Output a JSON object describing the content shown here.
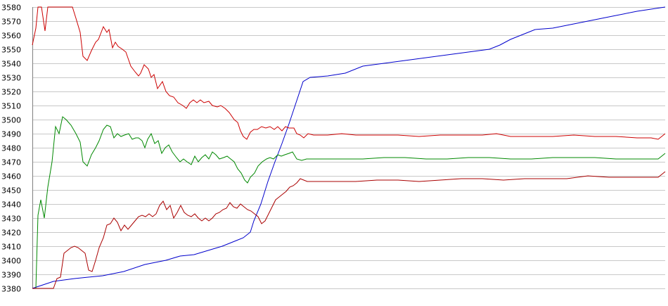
{
  "chart_data": {
    "type": "line",
    "title": "",
    "xlabel": "",
    "ylabel": "",
    "ylim": [
      3380,
      3580
    ],
    "yticks": [
      3380,
      3390,
      3400,
      3410,
      3420,
      3430,
      3440,
      3450,
      3460,
      3470,
      3480,
      3490,
      3500,
      3510,
      3520,
      3530,
      3540,
      3550,
      3560,
      3570,
      3580
    ],
    "xlim": [
      0,
      900
    ],
    "grid": "horizontal",
    "legend": "none",
    "series": [
      {
        "color": "#0000cc",
        "points": [
          [
            0,
            3380
          ],
          [
            30,
            3385
          ],
          [
            60,
            3387
          ],
          [
            100,
            3389
          ],
          [
            130,
            3392
          ],
          [
            160,
            3397
          ],
          [
            190,
            3400
          ],
          [
            210,
            3403
          ],
          [
            230,
            3404
          ],
          [
            250,
            3407
          ],
          [
            270,
            3410
          ],
          [
            290,
            3414
          ],
          [
            300,
            3416
          ],
          [
            310,
            3420
          ],
          [
            315,
            3428
          ],
          [
            325,
            3440
          ],
          [
            335,
            3456
          ],
          [
            345,
            3470
          ],
          [
            355,
            3483
          ],
          [
            365,
            3497
          ],
          [
            375,
            3512
          ],
          [
            385,
            3527
          ],
          [
            395,
            3530
          ],
          [
            420,
            3531
          ],
          [
            445,
            3533
          ],
          [
            470,
            3538
          ],
          [
            500,
            3540
          ],
          [
            530,
            3542
          ],
          [
            560,
            3544
          ],
          [
            590,
            3546
          ],
          [
            620,
            3548
          ],
          [
            650,
            3550
          ],
          [
            665,
            3553
          ],
          [
            680,
            3557
          ],
          [
            700,
            3561
          ],
          [
            715,
            3564
          ],
          [
            740,
            3565
          ],
          [
            770,
            3568
          ],
          [
            800,
            3571
          ],
          [
            830,
            3574
          ],
          [
            860,
            3577
          ],
          [
            900,
            3580
          ]
        ]
      },
      {
        "color": "#cc0000",
        "points": [
          [
            0,
            3553
          ],
          [
            5,
            3565
          ],
          [
            8,
            3580
          ],
          [
            13,
            3580
          ],
          [
            18,
            3563
          ],
          [
            22,
            3580
          ],
          [
            40,
            3580
          ],
          [
            57,
            3580
          ],
          [
            62,
            3572
          ],
          [
            68,
            3562
          ],
          [
            72,
            3545
          ],
          [
            78,
            3542
          ],
          [
            84,
            3549
          ],
          [
            90,
            3555
          ],
          [
            94,
            3557
          ],
          [
            101,
            3566
          ],
          [
            106,
            3562
          ],
          [
            109,
            3564
          ],
          [
            114,
            3551
          ],
          [
            118,
            3555
          ],
          [
            122,
            3552
          ],
          [
            128,
            3550
          ],
          [
            133,
            3548
          ],
          [
            140,
            3538
          ],
          [
            146,
            3534
          ],
          [
            151,
            3531
          ],
          [
            154,
            3533
          ],
          [
            159,
            3539
          ],
          [
            165,
            3536
          ],
          [
            169,
            3530
          ],
          [
            173,
            3532
          ],
          [
            178,
            3522
          ],
          [
            185,
            3527
          ],
          [
            190,
            3520
          ],
          [
            195,
            3517
          ],
          [
            201,
            3516
          ],
          [
            207,
            3512
          ],
          [
            214,
            3510
          ],
          [
            219,
            3508
          ],
          [
            224,
            3512
          ],
          [
            229,
            3514
          ],
          [
            234,
            3512
          ],
          [
            239,
            3514
          ],
          [
            244,
            3512
          ],
          [
            251,
            3513
          ],
          [
            256,
            3510
          ],
          [
            263,
            3509
          ],
          [
            268,
            3510
          ],
          [
            274,
            3508
          ],
          [
            280,
            3505
          ],
          [
            287,
            3500
          ],
          [
            292,
            3498
          ],
          [
            296,
            3492
          ],
          [
            300,
            3488
          ],
          [
            305,
            3486
          ],
          [
            310,
            3491
          ],
          [
            315,
            3493
          ],
          [
            320,
            3493
          ],
          [
            326,
            3495
          ],
          [
            332,
            3494
          ],
          [
            338,
            3495
          ],
          [
            344,
            3493
          ],
          [
            349,
            3495
          ],
          [
            355,
            3492
          ],
          [
            360,
            3495
          ],
          [
            365,
            3494
          ],
          [
            372,
            3494
          ],
          [
            376,
            3490
          ],
          [
            381,
            3489
          ],
          [
            386,
            3487
          ],
          [
            392,
            3490
          ],
          [
            400,
            3489
          ],
          [
            420,
            3489
          ],
          [
            440,
            3490
          ],
          [
            460,
            3489
          ],
          [
            490,
            3489
          ],
          [
            520,
            3489
          ],
          [
            550,
            3488
          ],
          [
            580,
            3489
          ],
          [
            610,
            3489
          ],
          [
            640,
            3489
          ],
          [
            660,
            3490
          ],
          [
            680,
            3488
          ],
          [
            700,
            3488
          ],
          [
            720,
            3488
          ],
          [
            740,
            3488
          ],
          [
            770,
            3489
          ],
          [
            800,
            3488
          ],
          [
            830,
            3488
          ],
          [
            860,
            3487
          ],
          [
            880,
            3487
          ],
          [
            890,
            3486
          ],
          [
            900,
            3490
          ]
        ]
      },
      {
        "color": "#008800",
        "points": [
          [
            0,
            3380
          ],
          [
            5,
            3380
          ],
          [
            8,
            3432
          ],
          [
            12,
            3443
          ],
          [
            17,
            3430
          ],
          [
            22,
            3452
          ],
          [
            28,
            3470
          ],
          [
            33,
            3495
          ],
          [
            38,
            3490
          ],
          [
            43,
            3502
          ],
          [
            48,
            3500
          ],
          [
            55,
            3496
          ],
          [
            62,
            3490
          ],
          [
            68,
            3484
          ],
          [
            72,
            3470
          ],
          [
            78,
            3467
          ],
          [
            84,
            3475
          ],
          [
            90,
            3480
          ],
          [
            95,
            3485
          ],
          [
            101,
            3493
          ],
          [
            106,
            3496
          ],
          [
            111,
            3495
          ],
          [
            116,
            3487
          ],
          [
            121,
            3490
          ],
          [
            126,
            3488
          ],
          [
            131,
            3489
          ],
          [
            137,
            3490
          ],
          [
            142,
            3486
          ],
          [
            147,
            3487
          ],
          [
            151,
            3487
          ],
          [
            156,
            3485
          ],
          [
            160,
            3480
          ],
          [
            164,
            3486
          ],
          [
            169,
            3490
          ],
          [
            174,
            3483
          ],
          [
            179,
            3485
          ],
          [
            184,
            3476
          ],
          [
            189,
            3480
          ],
          [
            194,
            3482
          ],
          [
            199,
            3477
          ],
          [
            205,
            3473
          ],
          [
            210,
            3470
          ],
          [
            215,
            3472
          ],
          [
            220,
            3470
          ],
          [
            226,
            3468
          ],
          [
            231,
            3474
          ],
          [
            236,
            3470
          ],
          [
            241,
            3473
          ],
          [
            246,
            3475
          ],
          [
            251,
            3472
          ],
          [
            256,
            3477
          ],
          [
            261,
            3475
          ],
          [
            266,
            3472
          ],
          [
            272,
            3473
          ],
          [
            277,
            3474
          ],
          [
            282,
            3472
          ],
          [
            287,
            3470
          ],
          [
            292,
            3465
          ],
          [
            297,
            3462
          ],
          [
            302,
            3457
          ],
          [
            306,
            3455
          ],
          [
            310,
            3459
          ],
          [
            316,
            3462
          ],
          [
            321,
            3467
          ],
          [
            327,
            3470
          ],
          [
            333,
            3472
          ],
          [
            338,
            3473
          ],
          [
            343,
            3472
          ],
          [
            349,
            3475
          ],
          [
            354,
            3474
          ],
          [
            359,
            3475
          ],
          [
            365,
            3476
          ],
          [
            370,
            3477
          ],
          [
            376,
            3472
          ],
          [
            383,
            3471
          ],
          [
            390,
            3472
          ],
          [
            410,
            3472
          ],
          [
            440,
            3472
          ],
          [
            470,
            3472
          ],
          [
            500,
            3473
          ],
          [
            530,
            3473
          ],
          [
            560,
            3472
          ],
          [
            590,
            3472
          ],
          [
            620,
            3473
          ],
          [
            650,
            3473
          ],
          [
            680,
            3472
          ],
          [
            710,
            3472
          ],
          [
            740,
            3473
          ],
          [
            770,
            3473
          ],
          [
            800,
            3473
          ],
          [
            830,
            3472
          ],
          [
            860,
            3472
          ],
          [
            880,
            3472
          ],
          [
            890,
            3472
          ],
          [
            900,
            3476
          ]
        ]
      },
      {
        "color": "#aa0000",
        "points": [
          [
            0,
            3380
          ],
          [
            10,
            3380
          ],
          [
            20,
            3380
          ],
          [
            30,
            3380
          ],
          [
            35,
            3387
          ],
          [
            40,
            3388
          ],
          [
            45,
            3405
          ],
          [
            50,
            3407
          ],
          [
            55,
            3409
          ],
          [
            60,
            3410
          ],
          [
            65,
            3409
          ],
          [
            70,
            3407
          ],
          [
            75,
            3405
          ],
          [
            80,
            3393
          ],
          [
            85,
            3392
          ],
          [
            90,
            3400
          ],
          [
            95,
            3409
          ],
          [
            101,
            3416
          ],
          [
            106,
            3425
          ],
          [
            111,
            3426
          ],
          [
            116,
            3430
          ],
          [
            121,
            3427
          ],
          [
            126,
            3421
          ],
          [
            131,
            3425
          ],
          [
            136,
            3422
          ],
          [
            141,
            3425
          ],
          [
            146,
            3428
          ],
          [
            151,
            3431
          ],
          [
            156,
            3432
          ],
          [
            161,
            3431
          ],
          [
            166,
            3433
          ],
          [
            171,
            3431
          ],
          [
            176,
            3433
          ],
          [
            181,
            3439
          ],
          [
            186,
            3442
          ],
          [
            191,
            3436
          ],
          [
            196,
            3439
          ],
          [
            201,
            3430
          ],
          [
            206,
            3434
          ],
          [
            211,
            3439
          ],
          [
            216,
            3434
          ],
          [
            221,
            3432
          ],
          [
            226,
            3431
          ],
          [
            231,
            3433
          ],
          [
            236,
            3430
          ],
          [
            241,
            3428
          ],
          [
            246,
            3430
          ],
          [
            251,
            3428
          ],
          [
            256,
            3430
          ],
          [
            261,
            3433
          ],
          [
            266,
            3434
          ],
          [
            271,
            3436
          ],
          [
            276,
            3437
          ],
          [
            281,
            3441
          ],
          [
            286,
            3438
          ],
          [
            291,
            3437
          ],
          [
            296,
            3440
          ],
          [
            301,
            3438
          ],
          [
            306,
            3436
          ],
          [
            311,
            3435
          ],
          [
            316,
            3433
          ],
          [
            321,
            3431
          ],
          [
            326,
            3426
          ],
          [
            331,
            3428
          ],
          [
            336,
            3433
          ],
          [
            341,
            3438
          ],
          [
            346,
            3443
          ],
          [
            351,
            3445
          ],
          [
            356,
            3447
          ],
          [
            361,
            3449
          ],
          [
            366,
            3452
          ],
          [
            371,
            3453
          ],
          [
            376,
            3455
          ],
          [
            381,
            3458
          ],
          [
            386,
            3457
          ],
          [
            391,
            3456
          ],
          [
            400,
            3456
          ],
          [
            430,
            3456
          ],
          [
            460,
            3456
          ],
          [
            490,
            3457
          ],
          [
            520,
            3457
          ],
          [
            550,
            3456
          ],
          [
            580,
            3457
          ],
          [
            610,
            3458
          ],
          [
            640,
            3458
          ],
          [
            670,
            3457
          ],
          [
            700,
            3458
          ],
          [
            730,
            3458
          ],
          [
            760,
            3458
          ],
          [
            790,
            3460
          ],
          [
            820,
            3459
          ],
          [
            850,
            3459
          ],
          [
            870,
            3459
          ],
          [
            890,
            3459
          ],
          [
            900,
            3463
          ]
        ]
      }
    ]
  }
}
